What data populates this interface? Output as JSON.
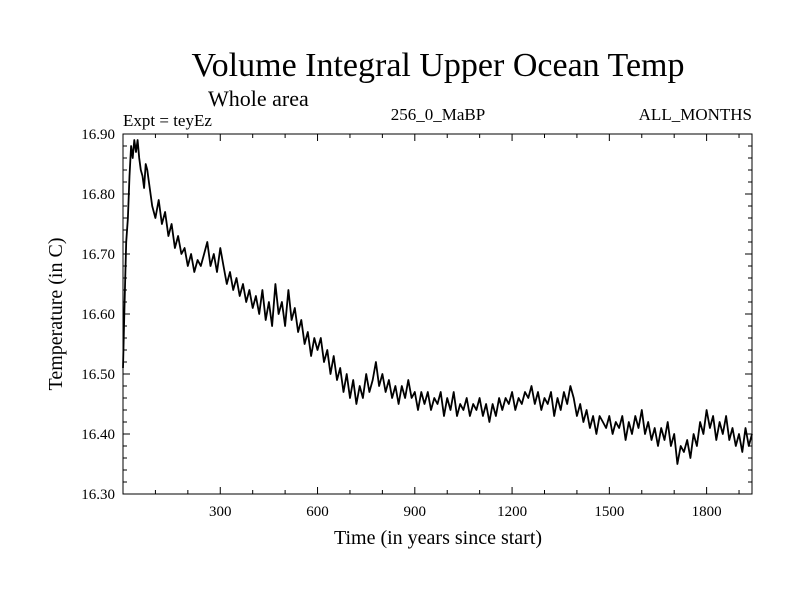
{
  "chart_data": {
    "type": "line",
    "title": "Volume Integral Upper Ocean Temp",
    "subtitle": "Whole area",
    "expt_label": "Expt = teyEz",
    "center_label": "256_0_MaBP",
    "right_label": "ALL_MONTHS",
    "xlabel": "Time (in years since start)",
    "ylabel": "Temperature (in C)",
    "xlim": [
      0,
      1940
    ],
    "ylim": [
      16.3,
      16.9
    ],
    "x_ticks": [
      300,
      600,
      900,
      1200,
      1500,
      1800
    ],
    "y_ticks": [
      "16.30",
      "16.40",
      "16.50",
      "16.60",
      "16.70",
      "16.80",
      "16.90"
    ],
    "grid": false,
    "series": [
      {
        "name": "temperature",
        "color": "#000000",
        "x": [
          0,
          5,
          10,
          15,
          20,
          25,
          30,
          35,
          40,
          45,
          50,
          55,
          60,
          65,
          70,
          75,
          80,
          90,
          100,
          110,
          120,
          130,
          140,
          150,
          160,
          170,
          180,
          190,
          200,
          210,
          220,
          230,
          240,
          250,
          260,
          270,
          280,
          290,
          300,
          310,
          320,
          330,
          340,
          350,
          360,
          370,
          380,
          390,
          400,
          410,
          420,
          430,
          440,
          450,
          460,
          470,
          480,
          490,
          500,
          510,
          520,
          530,
          540,
          550,
          560,
          570,
          580,
          590,
          600,
          610,
          620,
          630,
          640,
          650,
          660,
          670,
          680,
          690,
          700,
          710,
          720,
          730,
          740,
          750,
          760,
          770,
          780,
          790,
          800,
          810,
          820,
          830,
          840,
          850,
          860,
          870,
          880,
          890,
          900,
          910,
          920,
          930,
          940,
          950,
          960,
          970,
          980,
          990,
          1000,
          1010,
          1020,
          1030,
          1040,
          1050,
          1060,
          1070,
          1080,
          1090,
          1100,
          1110,
          1120,
          1130,
          1140,
          1150,
          1160,
          1170,
          1180,
          1190,
          1200,
          1210,
          1220,
          1230,
          1240,
          1250,
          1260,
          1270,
          1280,
          1290,
          1300,
          1310,
          1320,
          1330,
          1340,
          1350,
          1360,
          1370,
          1380,
          1390,
          1400,
          1410,
          1420,
          1430,
          1440,
          1450,
          1460,
          1470,
          1480,
          1490,
          1500,
          1510,
          1520,
          1530,
          1540,
          1550,
          1560,
          1570,
          1580,
          1590,
          1600,
          1610,
          1620,
          1630,
          1640,
          1650,
          1660,
          1670,
          1680,
          1690,
          1700,
          1710,
          1720,
          1730,
          1740,
          1750,
          1760,
          1770,
          1780,
          1790,
          1800,
          1810,
          1820,
          1830,
          1840,
          1850,
          1860,
          1870,
          1880,
          1890,
          1900,
          1910,
          1920,
          1930,
          1940
        ],
        "y": [
          16.51,
          16.62,
          16.72,
          16.76,
          16.83,
          16.88,
          16.86,
          16.89,
          16.87,
          16.89,
          16.86,
          16.84,
          16.83,
          16.81,
          16.85,
          16.84,
          16.82,
          16.78,
          16.76,
          16.79,
          16.75,
          16.77,
          16.73,
          16.75,
          16.71,
          16.73,
          16.7,
          16.71,
          16.68,
          16.7,
          16.67,
          16.69,
          16.68,
          16.7,
          16.72,
          16.68,
          16.7,
          16.67,
          16.71,
          16.68,
          16.65,
          16.67,
          16.64,
          16.66,
          16.63,
          16.65,
          16.62,
          16.64,
          16.61,
          16.63,
          16.6,
          16.64,
          16.59,
          16.62,
          16.58,
          16.65,
          16.6,
          16.62,
          16.58,
          16.64,
          16.59,
          16.61,
          16.57,
          16.59,
          16.55,
          16.57,
          16.53,
          16.56,
          16.54,
          16.56,
          16.52,
          16.54,
          16.5,
          16.53,
          16.49,
          16.51,
          16.47,
          16.5,
          16.46,
          16.49,
          16.45,
          16.48,
          16.46,
          16.5,
          16.47,
          16.49,
          16.52,
          16.48,
          16.5,
          16.47,
          16.49,
          16.46,
          16.48,
          16.45,
          16.48,
          16.46,
          16.49,
          16.46,
          16.47,
          16.44,
          16.47,
          16.45,
          16.47,
          16.44,
          16.46,
          16.45,
          16.47,
          16.43,
          16.46,
          16.44,
          16.47,
          16.43,
          16.45,
          16.44,
          16.46,
          16.43,
          16.45,
          16.44,
          16.46,
          16.43,
          16.45,
          16.42,
          16.45,
          16.43,
          16.46,
          16.44,
          16.46,
          16.45,
          16.47,
          16.44,
          16.46,
          16.45,
          16.47,
          16.46,
          16.48,
          16.45,
          16.47,
          16.44,
          16.46,
          16.45,
          16.47,
          16.43,
          16.46,
          16.44,
          16.47,
          16.45,
          16.48,
          16.46,
          16.43,
          16.45,
          16.42,
          16.44,
          16.41,
          16.43,
          16.4,
          16.43,
          16.42,
          16.41,
          16.43,
          16.4,
          16.42,
          16.41,
          16.43,
          16.39,
          16.42,
          16.4,
          16.43,
          16.41,
          16.44,
          16.4,
          16.42,
          16.39,
          16.41,
          16.38,
          16.41,
          16.39,
          16.42,
          16.38,
          16.4,
          16.35,
          16.38,
          16.37,
          16.39,
          16.36,
          16.4,
          16.38,
          16.42,
          16.4,
          16.44,
          16.41,
          16.43,
          16.39,
          16.42,
          16.4,
          16.43,
          16.39,
          16.41,
          16.38,
          16.4,
          16.37,
          16.41,
          16.38,
          16.4
        ]
      }
    ]
  }
}
